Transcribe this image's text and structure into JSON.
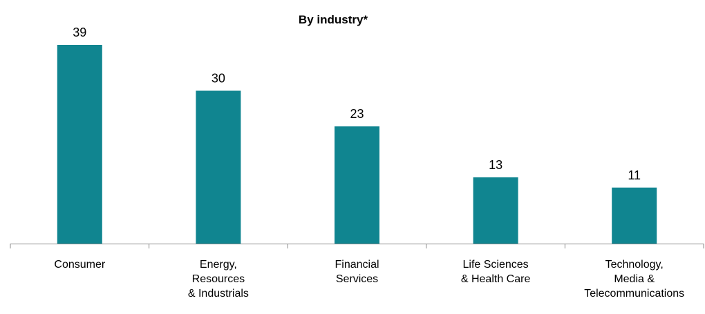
{
  "chart_data": {
    "type": "bar",
    "title": "By industry*",
    "categories": [
      "Consumer",
      "Energy,\nResources\n& Industrials",
      "Financial\nServices",
      "Life Sciences\n& Health Care",
      "Technology,\nMedia &\nTelecommunications"
    ],
    "values": [
      39,
      30,
      23,
      13,
      11
    ],
    "color": "#108590",
    "ylim": [
      0,
      45
    ]
  }
}
